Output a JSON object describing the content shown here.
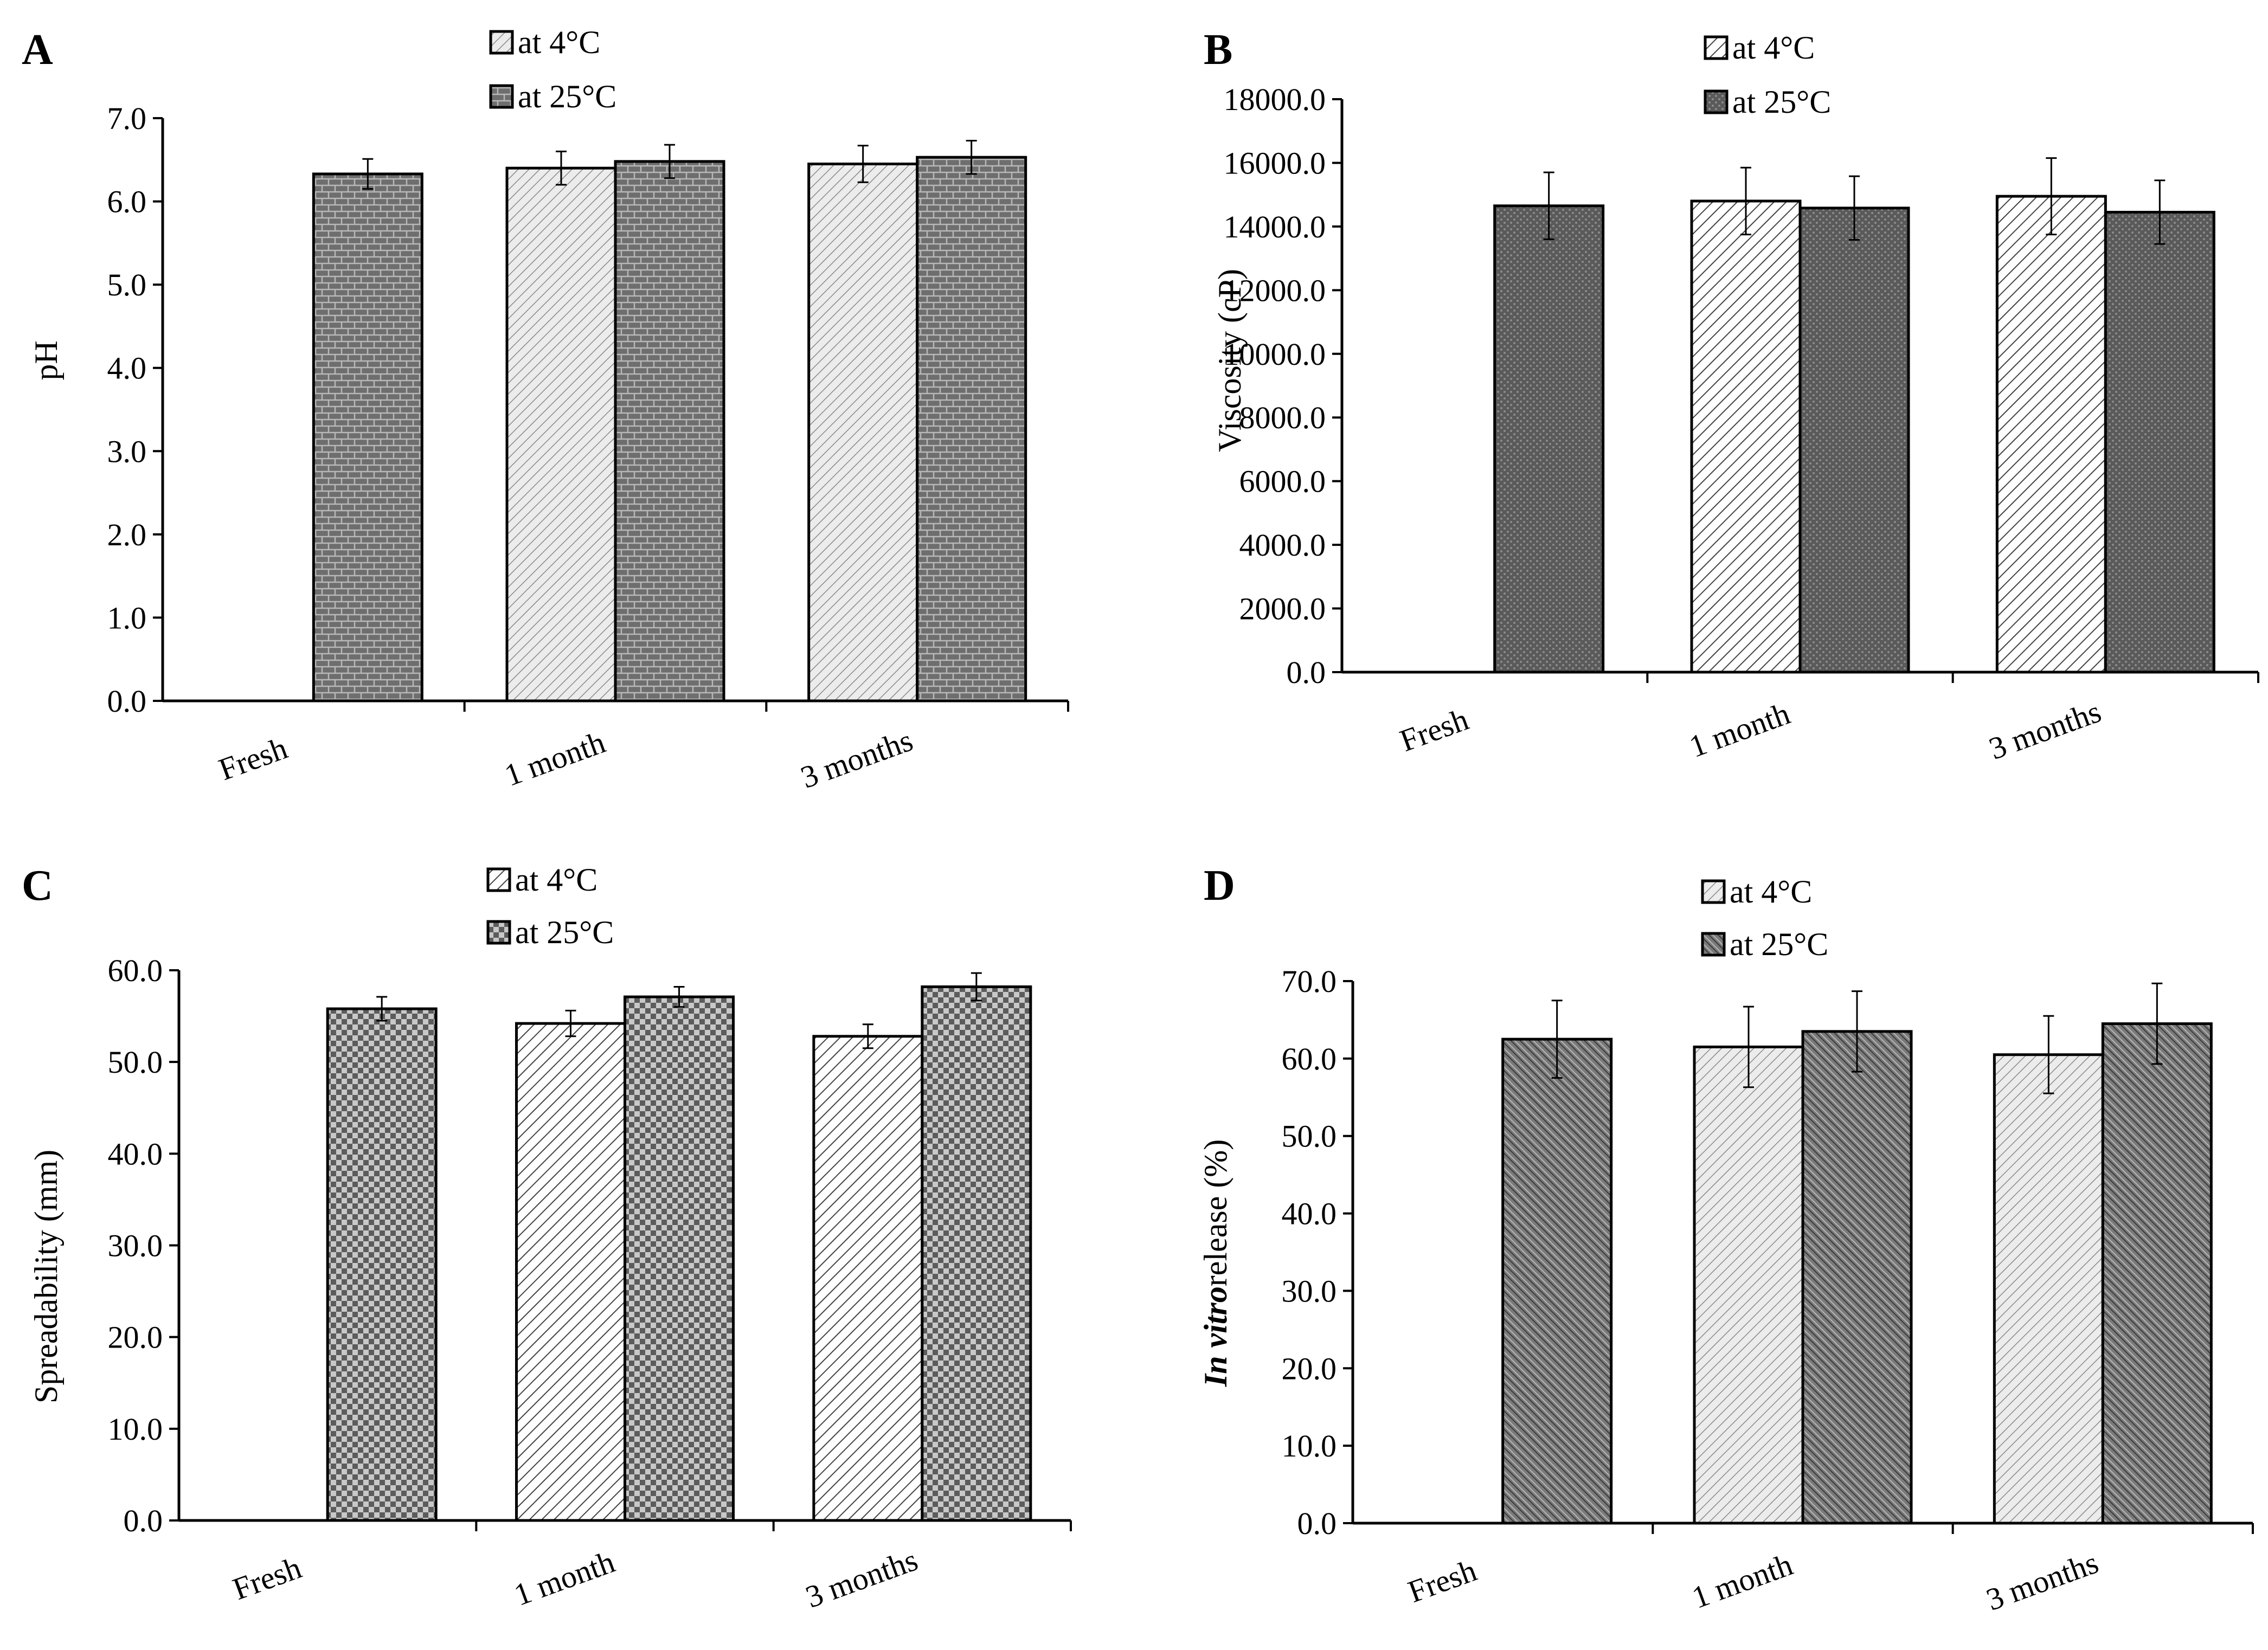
{
  "chart_data": [
    {
      "panel": "A",
      "type": "bar",
      "categories": [
        "Fresh",
        "1 month",
        "3 months"
      ],
      "ylabel": "pH",
      "ylabel_italic": "",
      "ylim": [
        0,
        7
      ],
      "ytick_step": 1,
      "ytick_decimals": 1,
      "series": [
        {
          "name": "at 4°C",
          "pattern": "lightdiag",
          "values": [
            null,
            6.4,
            6.45
          ],
          "errors": [
            null,
            0.2,
            0.22
          ]
        },
        {
          "name": "at 25°C",
          "pattern": "brick",
          "values": [
            6.33,
            6.48,
            6.53
          ],
          "errors": [
            0.18,
            0.2,
            0.2
          ]
        }
      ]
    },
    {
      "panel": "B",
      "type": "bar",
      "categories": [
        "Fresh",
        "1 month",
        "3 months"
      ],
      "ylabel": "Viscosity (cP)",
      "ylabel_italic": "",
      "ylim": [
        0,
        18000
      ],
      "ytick_step": 2000,
      "ytick_decimals": 1,
      "series": [
        {
          "name": "at 4°C",
          "pattern": "diag",
          "values": [
            null,
            14800,
            14950
          ],
          "errors": [
            null,
            1050,
            1200
          ]
        },
        {
          "name": "at 25°C",
          "pattern": "darkdot",
          "values": [
            14650,
            14580,
            14450
          ],
          "errors": [
            1050,
            1000,
            1000
          ]
        }
      ]
    },
    {
      "panel": "C",
      "type": "bar",
      "categories": [
        "Fresh",
        "1 month",
        "3 months"
      ],
      "ylabel": "Spreadability (mm)",
      "ylabel_italic": "",
      "ylim": [
        0,
        60
      ],
      "ytick_step": 10,
      "ytick_decimals": 1,
      "series": [
        {
          "name": "at 4°C",
          "pattern": "diag",
          "values": [
            null,
            54.2,
            52.8
          ],
          "errors": [
            null,
            1.4,
            1.3
          ]
        },
        {
          "name": "at 25°C",
          "pattern": "checker",
          "values": [
            55.8,
            57.1,
            58.2
          ],
          "errors": [
            1.3,
            1.1,
            1.5
          ]
        }
      ]
    },
    {
      "panel": "D",
      "type": "bar",
      "categories": [
        "Fresh",
        "1 month",
        "3 months"
      ],
      "ylabel": "release (%)",
      "ylabel_italic": "In vitro",
      "ylim": [
        0,
        70
      ],
      "ytick_step": 10,
      "ytick_decimals": 1,
      "series": [
        {
          "name": "at 4°C",
          "pattern": "lightdiag",
          "values": [
            null,
            61.5,
            60.5
          ],
          "errors": [
            null,
            5.2,
            5.0
          ]
        },
        {
          "name": "at 25°C",
          "pattern": "darkhatch",
          "values": [
            62.5,
            63.5,
            64.5
          ],
          "errors": [
            5.0,
            5.2,
            5.2
          ]
        }
      ]
    }
  ]
}
